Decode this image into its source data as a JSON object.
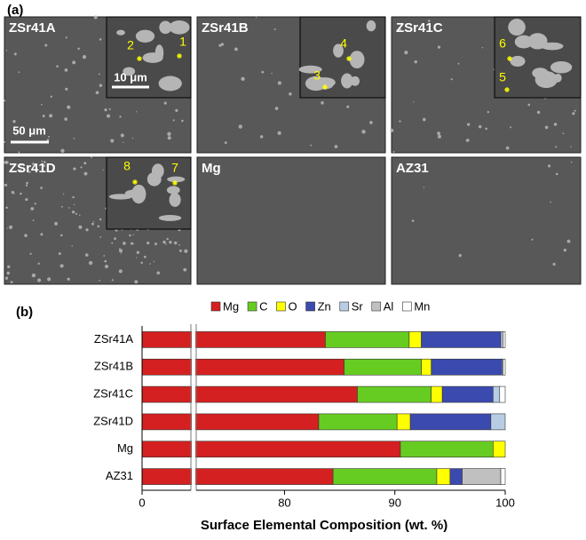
{
  "figure_label": "(a)",
  "panels": [
    {
      "label": "ZSr41A",
      "points": [
        "2",
        "1"
      ]
    },
    {
      "label": "ZSr41B",
      "points": [
        "4",
        "3"
      ]
    },
    {
      "label": "ZSr41C",
      "points": [
        "6",
        "5"
      ]
    },
    {
      "label": "ZSr41D",
      "points": [
        "8",
        "7"
      ]
    },
    {
      "label": "Mg",
      "points": []
    },
    {
      "label": "AZ31",
      "points": []
    }
  ],
  "scale_bars": {
    "inset": "10 μm",
    "main": "50 μm"
  },
  "chart_data": {
    "type": "bar",
    "orientation": "horizontal",
    "stacked": true,
    "panel_label": "(b)",
    "x_label": "Surface Elemental Composition (wt. %)",
    "categories": [
      "ZSr41A",
      "ZSr41B",
      "ZSr41C",
      "ZSr41D",
      "Mg",
      "AZ31"
    ],
    "xlim": [
      0,
      100
    ],
    "xbreak": [
      4,
      72
    ],
    "xticks": [
      0,
      80,
      90,
      100
    ],
    "series": [
      {
        "name": "Mg",
        "color": "#d42020",
        "values": [
          83.7,
          85.4,
          86.6,
          83.1,
          90.5,
          84.4
        ]
      },
      {
        "name": "C",
        "color": "#66cc22",
        "values": [
          7.6,
          7.0,
          6.7,
          7.1,
          8.4,
          9.4
        ]
      },
      {
        "name": "O",
        "color": "#ffff00",
        "values": [
          1.1,
          0.9,
          1.0,
          1.2,
          1.1,
          1.2
        ]
      },
      {
        "name": "Zn",
        "color": "#3b4aaf",
        "values": [
          7.2,
          6.4,
          4.6,
          7.3,
          0,
          1.1
        ]
      },
      {
        "name": "Sr",
        "color": "#b8cce4",
        "values": [
          0.2,
          0.1,
          0.6,
          1.3,
          0,
          0
        ]
      },
      {
        "name": "Al",
        "color": "#c0c0c0",
        "values": [
          0,
          0,
          0,
          0,
          0,
          3.5
        ]
      },
      {
        "name": "Mn",
        "color": "#ffffff",
        "values": [
          0.2,
          0.2,
          0.5,
          0,
          0,
          0.4
        ]
      }
    ]
  }
}
